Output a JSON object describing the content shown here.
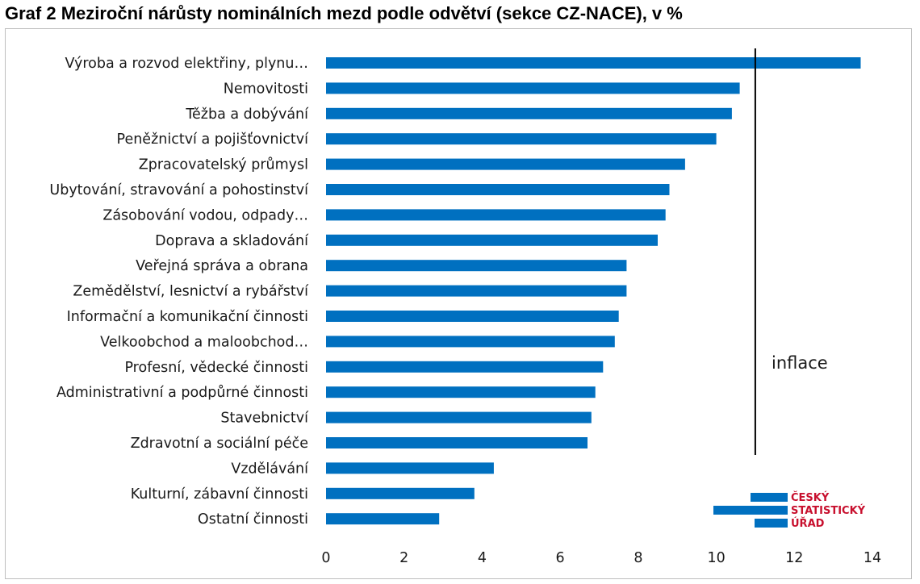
{
  "chart_data": {
    "type": "bar",
    "orientation": "horizontal",
    "title": "Graf 2  Meziroční nárůsty nominálních mezd podle odvětví (sekce CZ-NACE), v %",
    "categories": [
      "Výroba a rozvod elektřiny, plynu…",
      "Nemovitosti",
      "Těžba a dobývání",
      "Peněžnictví a pojišťovnictví",
      "Zpracovatelský průmysl",
      "Ubytování, stravování a pohostinství",
      "Zásobování vodou, odpady…",
      "Doprava a skladování",
      "Veřejná správa a obrana",
      "Zemědělství, lesnictví a rybářství",
      "Informační a komunikační činnosti",
      "Velkoobchod a maloobchod…",
      "Profesní, vědecké činnosti",
      "Administrativní a podpůrné činnosti",
      "Stavebnictví",
      "Zdravotní a sociální péče",
      "Vzdělávání",
      "Kulturní, zábavní činnosti",
      "Ostatní činnosti"
    ],
    "values": [
      13.7,
      10.6,
      10.4,
      10.0,
      9.2,
      8.8,
      8.7,
      8.5,
      7.7,
      7.7,
      7.5,
      7.4,
      7.1,
      6.9,
      6.8,
      6.7,
      4.3,
      3.8,
      2.9
    ],
    "xlim": [
      0,
      14
    ],
    "xticks": [
      "0",
      "2",
      "4",
      "6",
      "8",
      "10",
      "12",
      "14"
    ],
    "reference_line": {
      "label": "inflace",
      "value": 11.0
    },
    "bar_color": "#0070c0",
    "grid": false,
    "legend": "none"
  },
  "logo": {
    "lines": [
      "ČESKÝ",
      "STATISTICKÝ",
      "ÚŘAD"
    ],
    "bar_color": "#0070c0",
    "text_color": "#c8102e"
  }
}
